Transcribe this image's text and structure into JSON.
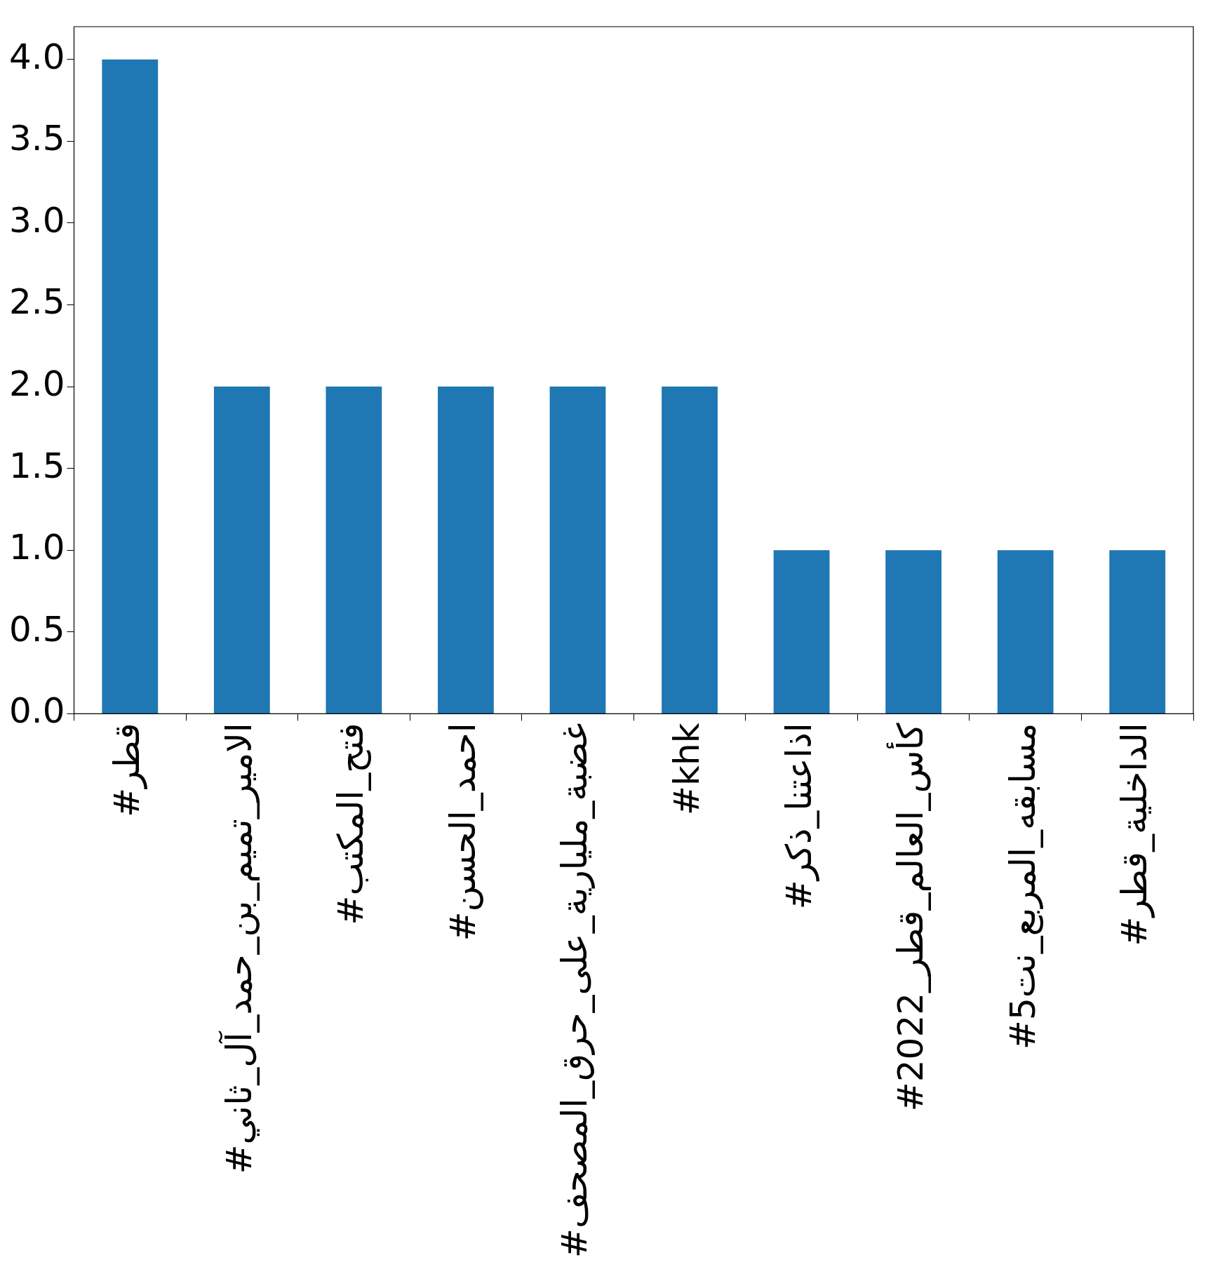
{
  "chart_data": {
    "type": "bar",
    "categories": [
      "#قطر",
      "#الامير_تميم_بن_حمد_آل_ثاني",
      "#فتح_المكتب",
      "#احمد_الحسن",
      "#غضبة_مليارية_على_حرق_المصحف",
      "#khk",
      "#اذاعتنا_ذكر",
      "#كأس_العالم_قطر_2022",
      "#مسابقه_المربع_نت5",
      "#الداخلية_قطر"
    ],
    "values": [
      4,
      2,
      2,
      2,
      2,
      2,
      1,
      1,
      1,
      1
    ],
    "color": "#1f77b4",
    "ylim": [
      0,
      4.2
    ],
    "yticks": [
      {
        "value": 0,
        "label": "0.0"
      },
      {
        "value": 0.5,
        "label": "0.5"
      },
      {
        "value": 1,
        "label": "1.0"
      },
      {
        "value": 1.5,
        "label": "1.5"
      },
      {
        "value": 2,
        "label": "2.0"
      },
      {
        "value": 2.5,
        "label": "2.5"
      },
      {
        "value": 3,
        "label": "3.0"
      },
      {
        "value": 3.5,
        "label": "3.5"
      },
      {
        "value": 4,
        "label": "4.0"
      }
    ],
    "grid": false,
    "legend": false
  }
}
